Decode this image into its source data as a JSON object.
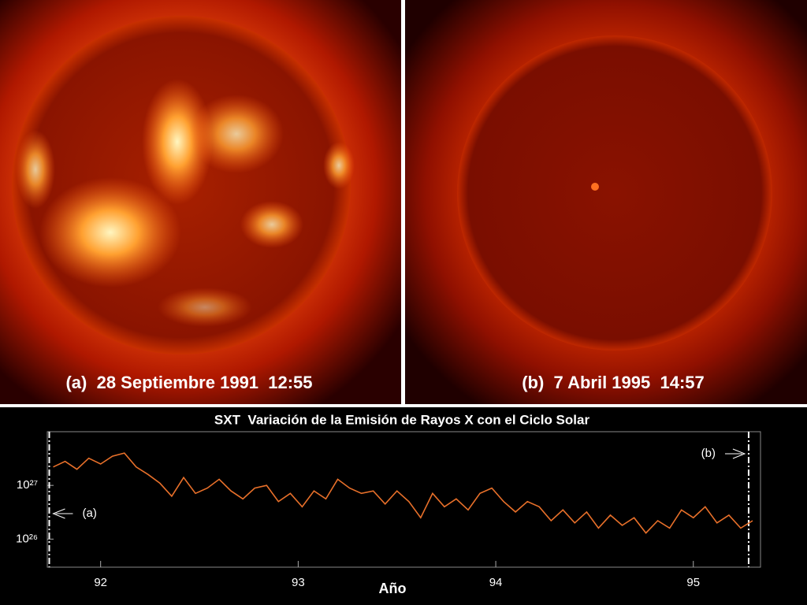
{
  "panels": [
    {
      "caption": "(a)  28 Septiembre 1991  12:55"
    },
    {
      "caption": "(b)  7 Abril 1995  14:57"
    }
  ],
  "chart_data": {
    "type": "line",
    "title": "SXT  Variación de la Emisión de Rayos X con el Ciclo Solar",
    "xlabel": "Año",
    "log_scale": true,
    "xlim": [
      91.73,
      95.34
    ],
    "xticks": [
      92,
      93,
      94,
      95
    ],
    "ylim": [
      3e+25,
      1e+28
    ],
    "yticks": [
      {
        "value": 1e+26,
        "label": "10²⁶"
      },
      {
        "value": 1e+27,
        "label": "10²⁷"
      }
    ],
    "markers": [
      {
        "label": "(a)",
        "x": 91.74
      },
      {
        "label": "(b)",
        "x": 95.28
      }
    ],
    "series": [
      {
        "color": "#e8702a",
        "x": [
          91.76,
          91.82,
          91.88,
          91.94,
          92.0,
          92.06,
          92.12,
          92.18,
          92.24,
          92.3,
          92.36,
          92.42,
          92.48,
          92.54,
          92.6,
          92.66,
          92.72,
          92.78,
          92.84,
          92.9,
          92.96,
          93.02,
          93.08,
          93.14,
          93.2,
          93.26,
          93.32,
          93.38,
          93.44,
          93.5,
          93.56,
          93.62,
          93.68,
          93.74,
          93.8,
          93.86,
          93.92,
          93.98,
          94.04,
          94.1,
          94.16,
          94.22,
          94.28,
          94.34,
          94.4,
          94.46,
          94.52,
          94.58,
          94.64,
          94.7,
          94.76,
          94.82,
          94.88,
          94.94,
          95.0,
          95.06,
          95.12,
          95.18,
          95.24,
          95.3
        ],
        "values": [
          2.2e+27,
          2.8e+27,
          2e+27,
          3.2e+27,
          2.5e+27,
          3.5e+27,
          4e+27,
          2.2e+27,
          1.6e+27,
          1.1e+27,
          6.3e+26,
          1.4e+27,
          7.1e+26,
          8.9e+26,
          1.3e+27,
          7.9e+26,
          5.6e+26,
          8.9e+26,
          1e+27,
          5e+26,
          7.1e+26,
          4e+26,
          7.9e+26,
          5.6e+26,
          1.3e+27,
          8.9e+26,
          7.1e+26,
          7.9e+26,
          4.5e+26,
          7.9e+26,
          5e+26,
          2.5e+26,
          7.1e+26,
          4e+26,
          5.6e+26,
          3.5e+26,
          7.1e+26,
          8.9e+26,
          5e+26,
          3.2e+26,
          5e+26,
          4e+26,
          2.2e+26,
          3.5e+26,
          2e+26,
          3.2e+26,
          1.6e+26,
          2.8e+26,
          1.8e+26,
          2.5e+26,
          1.3e+26,
          2.2e+26,
          1.6e+26,
          3.5e+26,
          2.5e+26,
          4e+26,
          2e+26,
          2.8e+26,
          1.6e+26,
          2.2e+26
        ]
      }
    ]
  }
}
